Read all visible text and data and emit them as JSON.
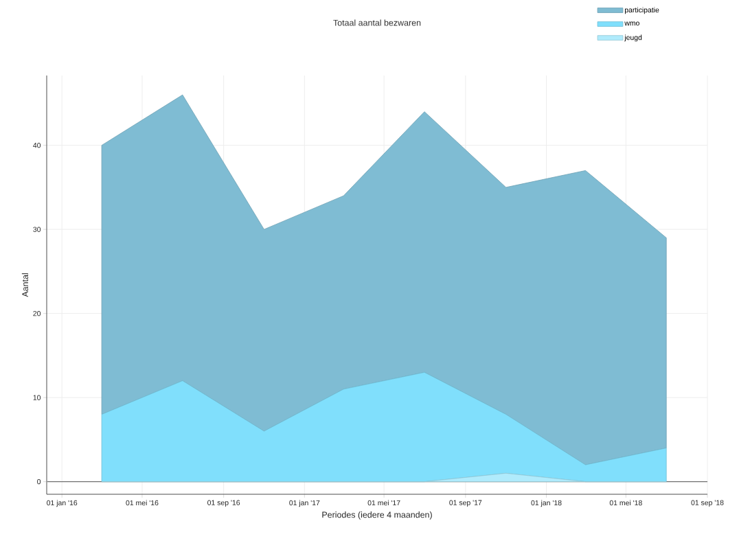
{
  "chart_data": {
    "type": "area",
    "title": "Totaal aantal bezwaren",
    "xlabel": "Periodes (iedere 4 maanden)",
    "ylabel": "Aantal",
    "x": [
      "2016-03-01",
      "2016-07-01",
      "2016-11-01",
      "2017-03-01",
      "2017-07-01",
      "2017-11-01",
      "2018-03-01",
      "2018-07-01"
    ],
    "stacked": true,
    "series": [
      {
        "name": "jeugd",
        "color": "#b0ebfc",
        "values": [
          0,
          0,
          0,
          0,
          0,
          1,
          0,
          0
        ]
      },
      {
        "name": "wmo",
        "color": "#80dffc",
        "values": [
          8,
          12,
          6,
          11,
          13,
          7,
          2,
          4
        ]
      },
      {
        "name": "participatie",
        "color": "#7fbcd3",
        "values": [
          32,
          34,
          24,
          23,
          31,
          27,
          35,
          25
        ]
      }
    ],
    "xlim": [
      "2015-12-09",
      "2018-09-01"
    ],
    "xticks": [
      {
        "value": "2016-01-01",
        "label": "01 jan '16"
      },
      {
        "value": "2016-05-01",
        "label": "01 mei '16"
      },
      {
        "value": "2016-09-01",
        "label": "01 sep '16"
      },
      {
        "value": "2017-01-01",
        "label": "01 jan '17"
      },
      {
        "value": "2017-05-01",
        "label": "01 mei '17"
      },
      {
        "value": "2017-09-01",
        "label": "01 sep '17"
      },
      {
        "value": "2018-01-01",
        "label": "01 jan '18"
      },
      {
        "value": "2018-05-01",
        "label": "01 mei '18"
      },
      {
        "value": "2018-09-01",
        "label": "01 sep '18"
      }
    ],
    "ylim": [
      -1.5,
      48.3
    ],
    "yticks": [
      0,
      10,
      20,
      30,
      40
    ],
    "ref_lines": [
      {
        "axis": "y",
        "value": 0,
        "color": "#707070"
      }
    ],
    "grid": true,
    "legend": "top right"
  }
}
